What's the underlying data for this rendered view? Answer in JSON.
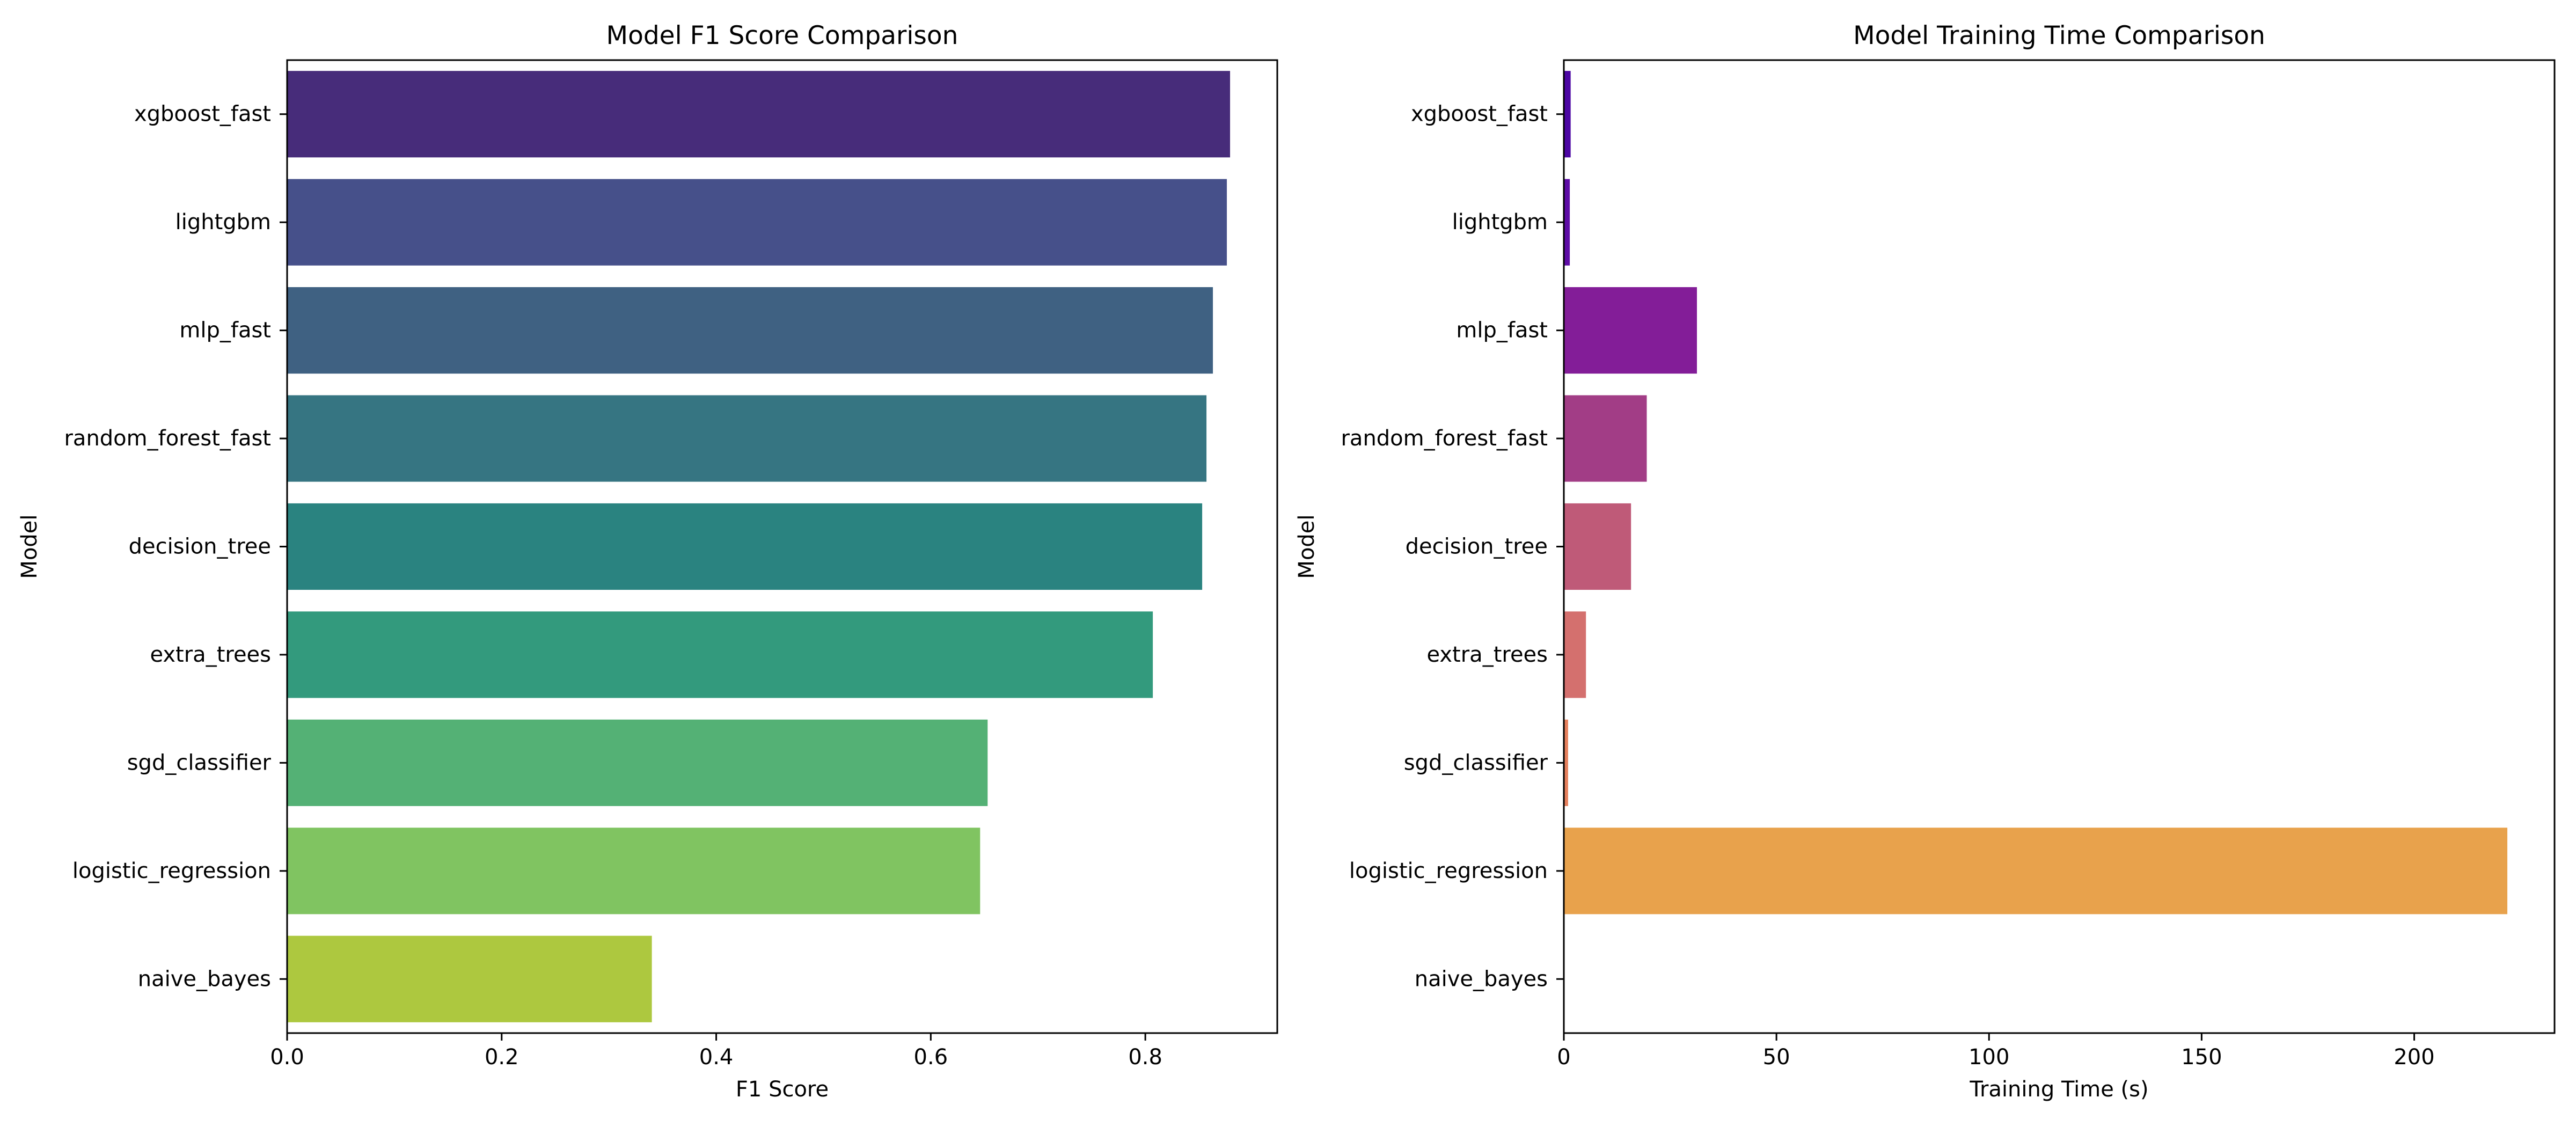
{
  "chart_data": [
    {
      "type": "bar",
      "orientation": "horizontal",
      "title": "Model F1 Score Comparison",
      "xlabel": "F1 Score",
      "ylabel": "Model",
      "categories": [
        "xgboost_fast",
        "lightgbm",
        "mlp_fast",
        "random_forest_fast",
        "decision_tree",
        "extra_trees",
        "sgd_classifier",
        "logistic_regression",
        "naive_bayes"
      ],
      "values": [
        0.879,
        0.876,
        0.863,
        0.857,
        0.853,
        0.807,
        0.653,
        0.646,
        0.34
      ],
      "colors": [
        "#472c7a",
        "#46508a",
        "#3f6182",
        "#367582",
        "#2a8380",
        "#339a7d",
        "#54b175",
        "#80c461",
        "#adc83f"
      ],
      "xlim": [
        0,
        0.923
      ],
      "xticks": [
        0.0,
        0.2,
        0.4,
        0.6,
        0.8
      ],
      "xtick_labels": [
        "0.0",
        "0.2",
        "0.4",
        "0.6",
        "0.8"
      ],
      "grid": false,
      "legend": "none"
    },
    {
      "type": "bar",
      "orientation": "horizontal",
      "title": "Model Training Time Comparison",
      "xlabel": "Training Time (s)",
      "ylabel": "Model",
      "categories": [
        "xgboost_fast",
        "lightgbm",
        "mlp_fast",
        "random_forest_fast",
        "decision_tree",
        "extra_trees",
        "sgd_classifier",
        "logistic_regression",
        "naive_bayes"
      ],
      "values": [
        1.6,
        1.4,
        31.3,
        19.5,
        15.8,
        5.2,
        1.0,
        221.9,
        0.15
      ],
      "colors": [
        "#4c06a3",
        "#5e0ca6",
        "#831d98",
        "#a23d86",
        "#bf5a78",
        "#d4706e",
        "#e6805d",
        "#e8a24c",
        "#f2c331"
      ],
      "xlim": [
        0,
        233
      ],
      "xticks": [
        0,
        50,
        100,
        150,
        200
      ],
      "xtick_labels": [
        "0",
        "50",
        "100",
        "150",
        "200"
      ],
      "grid": false,
      "legend": "none"
    }
  ]
}
